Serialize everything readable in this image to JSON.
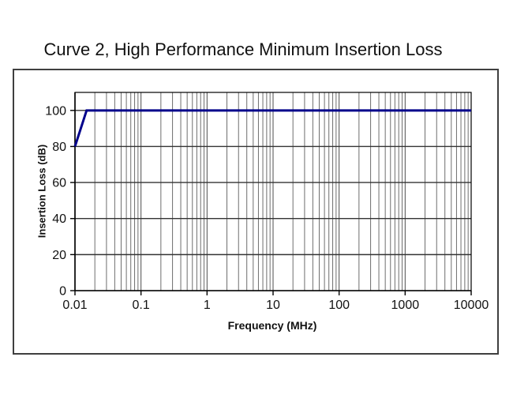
{
  "title": "Curve 2, High Performance Minimum Insertion Loss",
  "chart_data": {
    "type": "line",
    "title": "Curve 2, High Performance Minimum Insertion Loss",
    "xlabel": "Frequency (MHz)",
    "ylabel": "Insertion Loss (dB)",
    "x_scale": "log",
    "xlim": [
      0.01,
      10000
    ],
    "ylim": [
      0,
      110
    ],
    "x_ticks": [
      0.01,
      0.1,
      1,
      10,
      100,
      1000,
      10000
    ],
    "x_tick_labels": [
      "0.01",
      "0.1",
      "1",
      "10",
      "100",
      "1000",
      "10000"
    ],
    "y_ticks": [
      0,
      20,
      40,
      60,
      80,
      100
    ],
    "y_tick_labels": [
      "0",
      "20",
      "40",
      "60",
      "80",
      "100"
    ],
    "grid": "log minor and major verticals, major horizontals",
    "legend": "none",
    "colors": {
      "line": "#00008B",
      "minor_grid": "#6e6e6e",
      "major_grid": "#4d4d4d",
      "horizontal_grid": "#333333",
      "axis": "#000000",
      "frame_border": "#3f3f3f"
    },
    "series": [
      {
        "name": "Curve 2 minimum insertion loss",
        "points": [
          [
            0.01,
            80
          ],
          [
            0.015,
            100
          ],
          [
            10000,
            100
          ]
        ]
      }
    ]
  }
}
